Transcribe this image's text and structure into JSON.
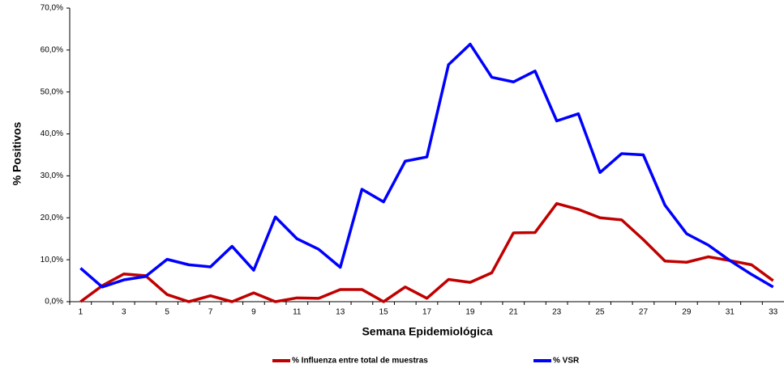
{
  "chart_data": {
    "type": "line",
    "y_label": "% Positivos",
    "x_label": "Semana Epidemiológica",
    "categories": [
      "1",
      null,
      "3",
      null,
      "5",
      null,
      "7",
      null,
      "9",
      null,
      "11",
      null,
      "13",
      null,
      "15",
      null,
      "17",
      null,
      "19",
      null,
      "21",
      null,
      "23",
      null,
      "25",
      null,
      "27",
      null,
      "29",
      null,
      "31",
      null,
      "33"
    ],
    "series": [
      {
        "name": "% Influenza entre total de muestras",
        "color": "#c00000",
        "values": [
          0,
          3.8,
          6.6,
          6.2,
          1.7,
          0,
          1.4,
          0,
          2.1,
          0,
          0.9,
          0.8,
          2.9,
          2.9,
          0,
          3.5,
          0.8,
          5.3,
          4.6,
          6.9,
          16.4,
          16.5,
          23.4,
          22.0,
          20.0,
          19.5,
          14.8,
          9.7,
          9.4,
          10.7,
          9.8,
          8.8,
          5.0
        ]
      },
      {
        "name": "% VSR",
        "color": "#0000ff",
        "values": [
          8.0,
          3.5,
          5.2,
          6.0,
          10.1,
          8.8,
          8.3,
          13.2,
          7.5,
          20.2,
          15.0,
          12.5,
          8.2,
          26.8,
          23.8,
          33.5,
          34.5,
          56.5,
          61.4,
          53.5,
          52.4,
          55.0,
          43.1,
          44.8,
          30.8,
          35.3,
          35.0,
          23.0,
          16.2,
          13.5,
          9.8,
          6.5,
          3.5
        ]
      }
    ],
    "ylim": [
      0,
      70
    ],
    "yticks": [
      {
        "value": 0,
        "label": "0,0%"
      },
      {
        "value": 10,
        "label": "10,0%"
      },
      {
        "value": 20,
        "label": "20,0%"
      },
      {
        "value": 30,
        "label": "30,0%"
      },
      {
        "value": 40,
        "label": "40,0%"
      },
      {
        "value": 50,
        "label": "50,0%"
      },
      {
        "value": 60,
        "label": "60,0%"
      },
      {
        "value": 70,
        "label": "70,0%"
      }
    ],
    "grid": false
  }
}
